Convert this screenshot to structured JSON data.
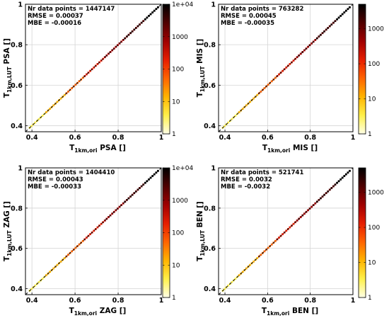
{
  "colors": {
    "colormap": [
      "#ffffe6",
      "#fff04a",
      "#ffb400",
      "#ff6400",
      "#e61e00",
      "#a00000",
      "#500000",
      "#000000"
    ],
    "one_to_one_line": "#000000",
    "grid": "#d4d4d4"
  },
  "chart_data": [
    {
      "type": "heatmap",
      "panel": "PSA",
      "xlabel": "T",
      "xlabel_sub": "1km,ori",
      "xlabel_suffix": " PSA []",
      "ylabel": "T",
      "ylabel_sub": "1km,LUT",
      "ylabel_suffix": " PSA []",
      "stats": [
        "Nr data points = 1447147",
        "RMSE = 0.00037",
        "MBE  = -0.00016"
      ],
      "xlim": [
        0.37,
        1.0
      ],
      "ylim": [
        0.37,
        1.0
      ],
      "xticks": [
        "0.4",
        "0.6",
        "0.8",
        "1"
      ],
      "yticks": [
        "0.4",
        "0.6",
        "0.8",
        "1"
      ],
      "grid": true,
      "one_to_one_line": "dashed",
      "colorbar": {
        "scale": "log",
        "max": 10000,
        "ticks": [
          "1",
          "10",
          "100",
          "1000",
          "1e+04"
        ]
      }
    },
    {
      "type": "heatmap",
      "panel": "MIS",
      "xlabel": "T",
      "xlabel_sub": "1km,ori",
      "xlabel_suffix": " MIS []",
      "ylabel": "T",
      "ylabel_sub": "1km,LUT",
      "ylabel_suffix": " MIS []",
      "stats": [
        "Nr data points = 763282",
        "RMSE = 0.00045",
        "MBE  = -0.00035"
      ],
      "xlim": [
        0.37,
        1.0
      ],
      "ylim": [
        0.37,
        1.0
      ],
      "xticks": [
        "0.4",
        "0.6",
        "0.8",
        "1"
      ],
      "yticks": [
        "0.4",
        "0.6",
        "0.8",
        "1"
      ],
      "grid": true,
      "one_to_one_line": "dashed",
      "colorbar": {
        "scale": "log",
        "max": 5000,
        "ticks": [
          "1",
          "10",
          "100",
          "1000"
        ]
      }
    },
    {
      "type": "heatmap",
      "panel": "ZAG",
      "xlabel": "T",
      "xlabel_sub": "1km,ori",
      "xlabel_suffix": " ZAG []",
      "ylabel": "T",
      "ylabel_sub": "1km,LUT",
      "ylabel_suffix": " ZAG []",
      "stats": [
        "Nr data points = 1404410",
        "RMSE = 0.00043",
        "MBE  = -0.00033"
      ],
      "xlim": [
        0.37,
        1.0
      ],
      "ylim": [
        0.37,
        1.0
      ],
      "xticks": [
        "0.4",
        "0.6",
        "0.8",
        "1"
      ],
      "yticks": [
        "0.4",
        "0.6",
        "0.8",
        "1"
      ],
      "grid": true,
      "one_to_one_line": "dashed",
      "colorbar": {
        "scale": "log",
        "max": 10000,
        "ticks": [
          "1",
          "10",
          "100",
          "1000",
          "1e+04"
        ]
      }
    },
    {
      "type": "heatmap",
      "panel": "BEN",
      "xlabel": "T",
      "xlabel_sub": "1km,ori",
      "xlabel_suffix": " BEN []",
      "ylabel": "T",
      "ylabel_sub": "1km,LUT",
      "ylabel_suffix": " BEN []",
      "stats": [
        "Nr data points = 521741",
        "RMSE = 0.0032",
        "MBE  = -0.0032"
      ],
      "xlim": [
        0.37,
        1.0
      ],
      "ylim": [
        0.37,
        1.0
      ],
      "xticks": [
        "0.4",
        "0.6",
        "0.8",
        "1"
      ],
      "yticks": [
        "0.4",
        "0.6",
        "0.8",
        "1"
      ],
      "grid": true,
      "one_to_one_line": "dashed",
      "colorbar": {
        "scale": "log",
        "max": 5000,
        "ticks": [
          "1",
          "10",
          "100",
          "1000"
        ]
      }
    }
  ]
}
